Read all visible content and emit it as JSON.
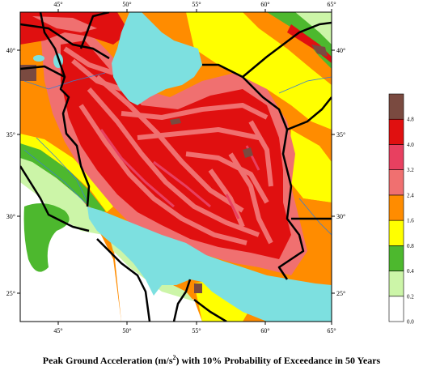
{
  "map": {
    "lon_ticks": [
      "45°",
      "50°",
      "55°",
      "60°",
      "65°"
    ],
    "lat_ticks": [
      "40°",
      "35°",
      "30°",
      "25°"
    ]
  },
  "legend": {
    "classes": [
      {
        "label": "0.0",
        "color": "#ffffff"
      },
      {
        "label": "0.2",
        "color": "#ccf5a8"
      },
      {
        "label": "0.4",
        "color": "#4db82e"
      },
      {
        "label": "0.8",
        "color": "#ffff00"
      },
      {
        "label": "1.6",
        "color": "#ff8c00"
      },
      {
        "label": "2.4",
        "color": "#f07070"
      },
      {
        "label": "3.2",
        "color": "#e84060"
      },
      {
        "label": "4.0",
        "color": "#e01010"
      },
      {
        "label": "4.8",
        "color": "#7a4a40"
      }
    ]
  },
  "caption": {
    "prefix": "Peak Ground Acceleration (m/s",
    "sup": "2",
    "suffix": ") with 10% Probability of Exceedance in 50 Years"
  },
  "colors": {
    "water": "#7de0e0",
    "border": "#000000",
    "river": "#3a7fd0"
  }
}
